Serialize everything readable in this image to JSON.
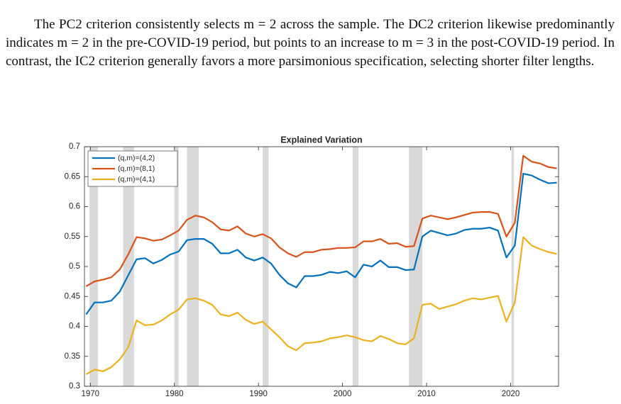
{
  "paragraph": "The PC2 criterion consistently selects m = 2 across the sample. The DC2 criterion likewise predominantly indicates m = 2 in the pre-COVID-19 period, but points to an increase to m = 3 in the post-COVID-19 period. In contrast, the IC2 criterion generally favors a more parsimonious specification, selecting shorter filter lengths.",
  "chart_data": {
    "type": "line",
    "title": "Explained Variation",
    "x": [
      1969.5,
      1970.5,
      1971.5,
      1972.5,
      1973.5,
      1974.5,
      1975.5,
      1976.5,
      1977.5,
      1978.5,
      1979.5,
      1980.5,
      1981.5,
      1982.5,
      1983.5,
      1984.5,
      1985.5,
      1986.5,
      1987.5,
      1988.5,
      1989.5,
      1990.5,
      1991.5,
      1992.5,
      1993.5,
      1994.5,
      1995.5,
      1996.5,
      1997.5,
      1998.5,
      1999.5,
      2000.5,
      2001.5,
      2002.5,
      2003.5,
      2004.5,
      2005.5,
      2006.5,
      2007.5,
      2008.5,
      2009.5,
      2010.5,
      2011.5,
      2012.5,
      2013.5,
      2014.5,
      2015.5,
      2016.5,
      2017.5,
      2018.5,
      2019.5,
      2020.5,
      2021.5,
      2022.5,
      2023.5,
      2024.5,
      2025.5
    ],
    "series": [
      {
        "name": "(q,m)=(4,2)",
        "color": "#0072BD",
        "values": [
          0.42,
          0.44,
          0.44,
          0.443,
          0.458,
          0.485,
          0.512,
          0.514,
          0.505,
          0.511,
          0.52,
          0.525,
          0.544,
          0.546,
          0.546,
          0.538,
          0.522,
          0.522,
          0.528,
          0.515,
          0.51,
          0.515,
          0.505,
          0.486,
          0.472,
          0.465,
          0.484,
          0.484,
          0.486,
          0.491,
          0.489,
          0.492,
          0.482,
          0.503,
          0.5,
          0.51,
          0.499,
          0.499,
          0.494,
          0.495,
          0.55,
          0.56,
          0.556,
          0.552,
          0.555,
          0.561,
          0.563,
          0.563,
          0.565,
          0.56,
          0.515,
          0.535,
          0.655,
          0.652,
          0.645,
          0.639,
          0.64
        ]
      },
      {
        "name": "(q,m)=(8,1)",
        "color": "#D95319",
        "values": [
          0.467,
          0.475,
          0.478,
          0.482,
          0.495,
          0.52,
          0.549,
          0.547,
          0.543,
          0.545,
          0.552,
          0.56,
          0.578,
          0.585,
          0.582,
          0.574,
          0.562,
          0.56,
          0.567,
          0.555,
          0.55,
          0.554,
          0.547,
          0.532,
          0.522,
          0.516,
          0.524,
          0.524,
          0.528,
          0.529,
          0.531,
          0.531,
          0.532,
          0.542,
          0.542,
          0.546,
          0.538,
          0.539,
          0.533,
          0.534,
          0.58,
          0.585,
          0.582,
          0.579,
          0.582,
          0.586,
          0.59,
          0.591,
          0.591,
          0.588,
          0.55,
          0.573,
          0.685,
          0.675,
          0.672,
          0.666,
          0.664
        ]
      },
      {
        "name": "(q,m)=(4,1)",
        "color": "#EDB120",
        "values": [
          0.32,
          0.328,
          0.325,
          0.332,
          0.345,
          0.365,
          0.41,
          0.402,
          0.403,
          0.41,
          0.42,
          0.428,
          0.445,
          0.447,
          0.443,
          0.436,
          0.42,
          0.417,
          0.423,
          0.411,
          0.404,
          0.408,
          0.395,
          0.382,
          0.367,
          0.36,
          0.372,
          0.373,
          0.375,
          0.38,
          0.382,
          0.385,
          0.382,
          0.377,
          0.375,
          0.384,
          0.379,
          0.372,
          0.37,
          0.38,
          0.436,
          0.438,
          0.429,
          0.433,
          0.437,
          0.443,
          0.447,
          0.445,
          0.448,
          0.451,
          0.408,
          0.44,
          0.549,
          0.535,
          0.529,
          0.524,
          0.521
        ]
      }
    ],
    "shaded_periods": [
      [
        1969.9,
        1970.9
      ],
      [
        1973.9,
        1975.2
      ],
      [
        1980.0,
        1980.5
      ],
      [
        1981.5,
        1982.9
      ],
      [
        1990.5,
        1991.2
      ],
      [
        2001.2,
        2001.9
      ],
      [
        2007.9,
        2009.5
      ],
      [
        2020.1,
        2020.4
      ]
    ],
    "shade_color": "#d9d9d9",
    "xlim": [
      1969.3,
      2025.7
    ],
    "xticks": [
      1970,
      1980,
      1990,
      2000,
      2010,
      2020
    ],
    "ylim": [
      0.3,
      0.7
    ],
    "yticks": [
      0.3,
      0.35,
      0.4,
      0.45,
      0.5,
      0.55,
      0.6,
      0.65,
      0.7
    ],
    "legend": "upper left",
    "grid": false
  }
}
